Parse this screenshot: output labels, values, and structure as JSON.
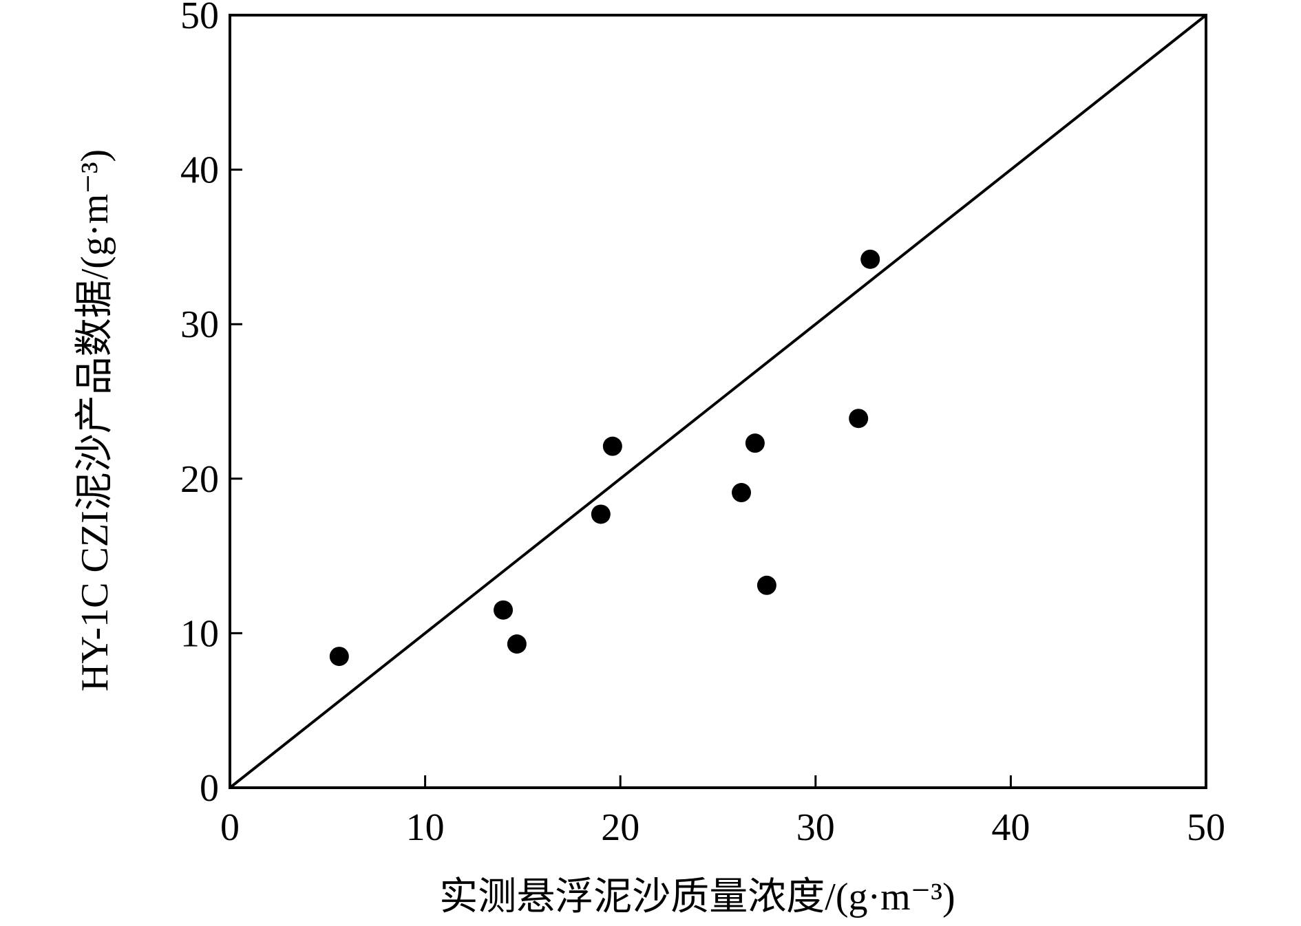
{
  "colors": {
    "axis": "#000000",
    "points": "#000000",
    "line": "#000000",
    "background": "#ffffff"
  },
  "chart_data": {
    "type": "scatter",
    "title": "",
    "xlabel": "实测悬浮泥沙质量浓度/(g·m⁻³)",
    "ylabel": "HY-1C CZI泥沙产品数据/(g·m⁻³)",
    "xlim": [
      0,
      50
    ],
    "ylim": [
      0,
      50
    ],
    "xticks": [
      0,
      10,
      20,
      30,
      40,
      50
    ],
    "yticks": [
      0,
      10,
      20,
      30,
      40,
      50
    ],
    "xtick_labels": [
      "0",
      "10",
      "20",
      "30",
      "40",
      "50"
    ],
    "ytick_labels": [
      "0",
      "10",
      "20",
      "30",
      "40",
      "50"
    ],
    "grid": false,
    "legend": "none",
    "reference_line": {
      "type": "1:1",
      "from": [
        0,
        0
      ],
      "to": [
        50,
        50
      ]
    },
    "series": [
      {
        "points": [
          {
            "x": 5.6,
            "y": 8.5
          },
          {
            "x": 14.0,
            "y": 11.5
          },
          {
            "x": 14.7,
            "y": 9.3
          },
          {
            "x": 19.0,
            "y": 17.7
          },
          {
            "x": 19.6,
            "y": 22.1
          },
          {
            "x": 26.2,
            "y": 19.1
          },
          {
            "x": 26.9,
            "y": 22.3
          },
          {
            "x": 27.5,
            "y": 13.1
          },
          {
            "x": 32.2,
            "y": 23.9
          },
          {
            "x": 32.8,
            "y": 34.2
          }
        ]
      }
    ]
  }
}
